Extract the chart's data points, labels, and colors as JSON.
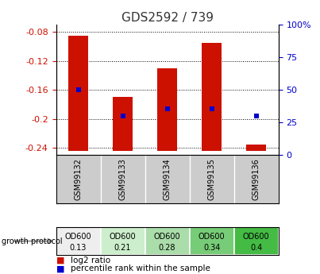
{
  "title": "GDS2592 / 739",
  "samples": [
    "GSM99132",
    "GSM99133",
    "GSM99134",
    "GSM99135",
    "GSM99136"
  ],
  "bar_tops": [
    -0.085,
    -0.17,
    -0.13,
    -0.095,
    -0.236
  ],
  "bar_bottom": -0.244,
  "percentile_values": [
    -0.16,
    -0.196,
    -0.186,
    -0.186,
    -0.196
  ],
  "ylim_left": [
    -0.25,
    -0.07
  ],
  "ylim_right": [
    0,
    100
  ],
  "yticks_left": [
    -0.24,
    -0.2,
    -0.16,
    -0.12,
    -0.08
  ],
  "yticks_right": [
    0,
    25,
    50,
    75,
    100
  ],
  "growth_labels_top": [
    "OD600",
    "OD600",
    "OD600",
    "OD600",
    "OD600"
  ],
  "growth_labels_bot": [
    "0.13",
    "0.21",
    "0.28",
    "0.34",
    "0.4"
  ],
  "growth_colors": [
    "#eeeeee",
    "#cceecc",
    "#aaddaa",
    "#77cc77",
    "#44bb44"
  ],
  "bar_color": "#cc1100",
  "blue_marker_color": "#0000cc",
  "left_tick_color": "#cc1100",
  "right_tick_color": "#0000cc",
  "bar_width": 0.45
}
